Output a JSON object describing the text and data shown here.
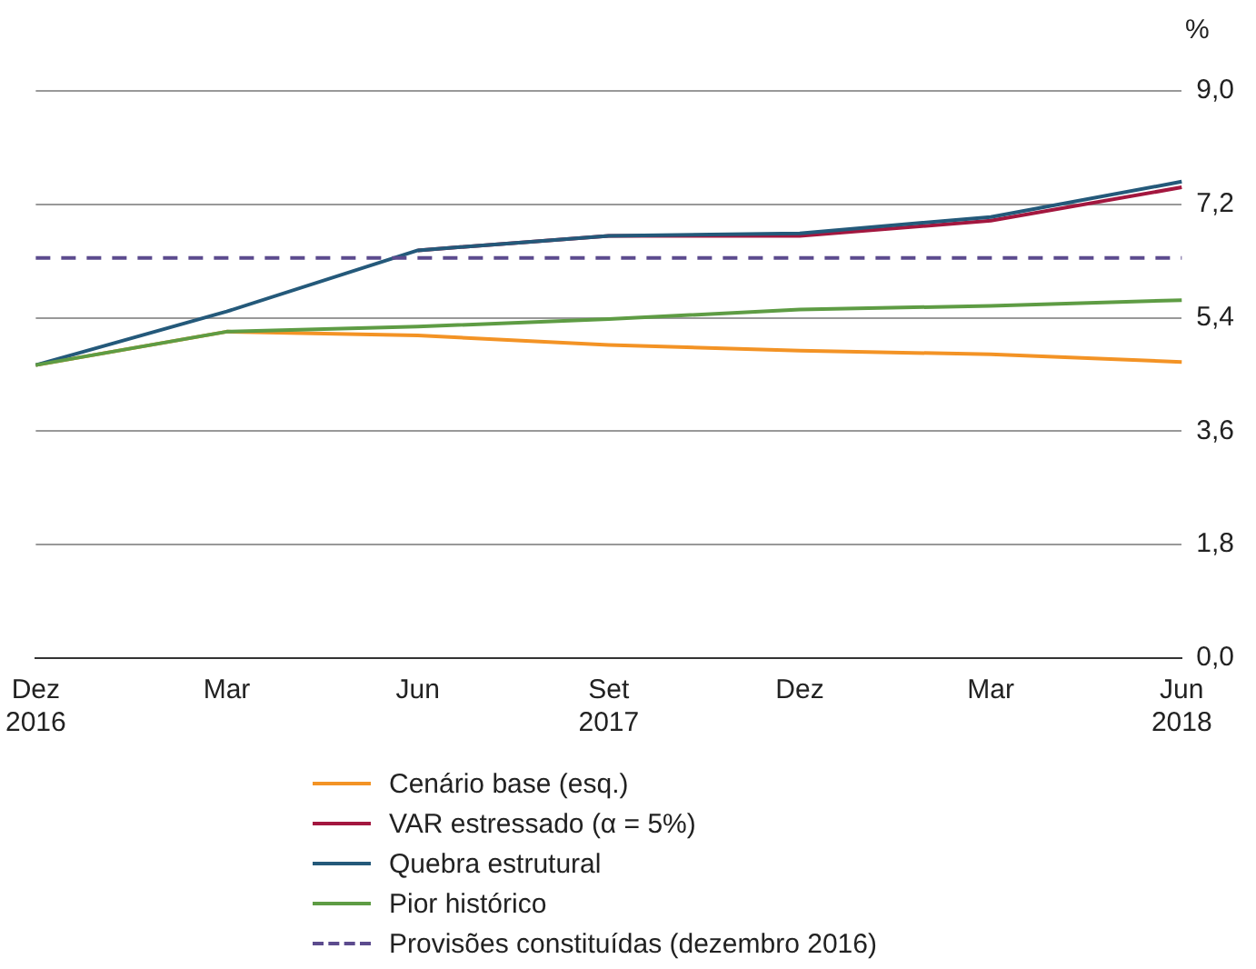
{
  "chart_data": {
    "type": "line",
    "ylabel": "%",
    "categories": [
      "Dez\n2016",
      "Mar",
      "Jun",
      "Set\n2017",
      "Dez",
      "Mar",
      "Jun\n2018"
    ],
    "series": [
      {
        "name": "Cenário base (esq.)",
        "color": "#f39325",
        "values": [
          4.65,
          5.18,
          5.12,
          4.97,
          4.88,
          4.82,
          4.7
        ]
      },
      {
        "name": "VAR estressado (α = 5%)",
        "color": "#a3173f",
        "values": [
          null,
          null,
          6.47,
          6.7,
          6.7,
          6.94,
          7.47
        ]
      },
      {
        "name": "Quebra estrutural",
        "color": "#24597a",
        "values": [
          4.65,
          5.5,
          6.47,
          6.7,
          6.74,
          7.0,
          7.56
        ]
      },
      {
        "name": "Pior histórico",
        "color": "#5e9c44",
        "values": [
          4.65,
          5.18,
          5.26,
          5.38,
          5.53,
          5.59,
          5.68
        ]
      }
    ],
    "ref_lines": [
      {
        "axis": "y",
        "value": 6.35,
        "label": "Provisões constituídas (dezembro 2016)",
        "color": "#5c4b8e",
        "line_style": "dashed"
      }
    ],
    "ylim": [
      0,
      9
    ],
    "yticks": [
      {
        "value": 0,
        "label": "0,0"
      },
      {
        "value": 1.8,
        "label": "1,8"
      },
      {
        "value": 3.6,
        "label": "3,6"
      },
      {
        "value": 5.4,
        "label": "5,4"
      },
      {
        "value": 7.2,
        "label": "7,2"
      },
      {
        "value": 9,
        "label": "9,0"
      }
    ],
    "grid": "y",
    "legend": "bottom",
    "line_style": "solid",
    "marker": "none"
  }
}
